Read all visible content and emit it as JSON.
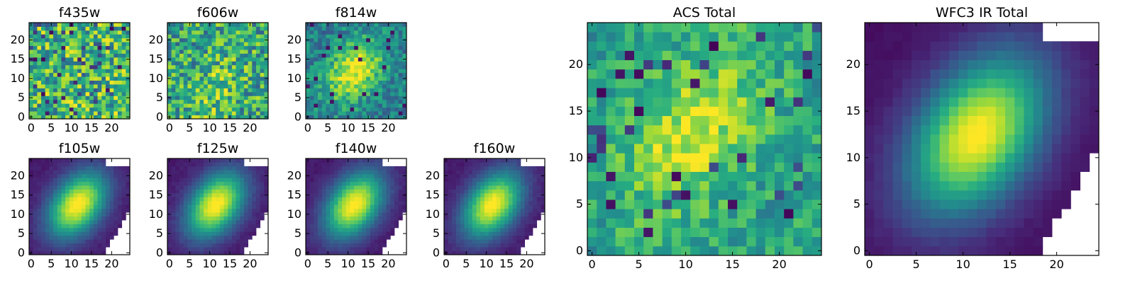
{
  "figure": {
    "colormap": "viridis",
    "axes_color": "#000000",
    "background": "#ffffff"
  },
  "chart_data": [
    {
      "type": "heatmap",
      "title": "f435w",
      "x_ticks": [
        0,
        5,
        10,
        15,
        20
      ],
      "y_ticks": [
        0,
        5,
        10,
        15,
        20
      ],
      "xlim": [
        -0.5,
        24.5
      ],
      "ylim": [
        -0.5,
        24.5
      ],
      "grid": false
    },
    {
      "type": "heatmap",
      "title": "f606w",
      "x_ticks": [
        0,
        5,
        10,
        15,
        20
      ],
      "y_ticks": [
        0,
        5,
        10,
        15,
        20
      ],
      "xlim": [
        -0.5,
        24.5
      ],
      "ylim": [
        -0.5,
        24.5
      ],
      "grid": false
    },
    {
      "type": "heatmap",
      "title": "f814w",
      "x_ticks": [
        0,
        5,
        10,
        15,
        20
      ],
      "y_ticks": [
        0,
        5,
        10,
        15,
        20
      ],
      "xlim": [
        -0.5,
        24.5
      ],
      "ylim": [
        -0.5,
        24.5
      ],
      "grid": false
    },
    {
      "type": "heatmap",
      "title": "f105w",
      "x_ticks": [
        0,
        5,
        10,
        15,
        20
      ],
      "y_ticks": [
        0,
        5,
        10,
        15,
        20
      ],
      "xlim": [
        -0.5,
        24.5
      ],
      "ylim": [
        -0.5,
        24.5
      ],
      "grid": false
    },
    {
      "type": "heatmap",
      "title": "f125w",
      "x_ticks": [
        0,
        5,
        10,
        15,
        20
      ],
      "y_ticks": [
        0,
        5,
        10,
        15,
        20
      ],
      "xlim": [
        -0.5,
        24.5
      ],
      "ylim": [
        -0.5,
        24.5
      ],
      "grid": false
    },
    {
      "type": "heatmap",
      "title": "f140w",
      "x_ticks": [
        0,
        5,
        10,
        15,
        20
      ],
      "y_ticks": [
        0,
        5,
        10,
        15,
        20
      ],
      "xlim": [
        -0.5,
        24.5
      ],
      "ylim": [
        -0.5,
        24.5
      ],
      "grid": false
    },
    {
      "type": "heatmap",
      "title": "f160w",
      "x_ticks": [
        0,
        5,
        10,
        15,
        20
      ],
      "y_ticks": [
        0,
        5,
        10,
        15,
        20
      ],
      "xlim": [
        -0.5,
        24.5
      ],
      "ylim": [
        -0.5,
        24.5
      ],
      "grid": false
    },
    {
      "type": "heatmap",
      "title": "ACS Total",
      "x_ticks": [
        0,
        5,
        10,
        15,
        20
      ],
      "y_ticks": [
        0,
        5,
        10,
        15,
        20
      ],
      "xlim": [
        -0.5,
        24.5
      ],
      "ylim": [
        -0.5,
        24.5
      ],
      "grid": false
    },
    {
      "type": "heatmap",
      "title": "WFC3 IR Total",
      "x_ticks": [
        0,
        5,
        10,
        15,
        20
      ],
      "y_ticks": [
        0,
        5,
        10,
        15,
        20
      ],
      "xlim": [
        -0.5,
        24.5
      ],
      "ylim": [
        -0.5,
        24.5
      ],
      "grid": false
    }
  ]
}
